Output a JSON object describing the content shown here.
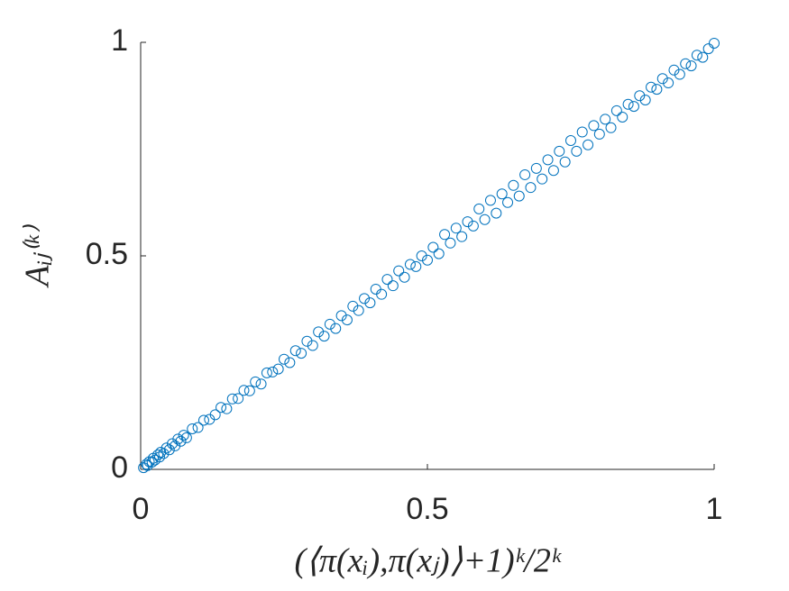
{
  "chart_data": {
    "type": "scatter",
    "x_label": "(⟨π(xᵢ),π(xⱼ)⟩+1)ᵏ/2ᵏ",
    "y_label": "Aᵢⱼ⁽ᵏ⁾",
    "xlim": [
      0,
      1
    ],
    "ylim": [
      0,
      1
    ],
    "xticks": [
      0,
      0.5,
      1
    ],
    "yticks": [
      0,
      0.5,
      1
    ],
    "series": [
      {
        "color": "#0072BD",
        "x": [
          0.005,
          0.01,
          0.012,
          0.015,
          0.02,
          0.022,
          0.025,
          0.03,
          0.033,
          0.035,
          0.04,
          0.045,
          0.05,
          0.055,
          0.06,
          0.065,
          0.07,
          0.075,
          0.08,
          0.09,
          0.1,
          0.11,
          0.12,
          0.13,
          0.14,
          0.15,
          0.16,
          0.17,
          0.18,
          0.19,
          0.2,
          0.21,
          0.22,
          0.23,
          0.24,
          0.25,
          0.26,
          0.27,
          0.28,
          0.29,
          0.3,
          0.31,
          0.32,
          0.33,
          0.34,
          0.35,
          0.36,
          0.37,
          0.38,
          0.39,
          0.4,
          0.41,
          0.42,
          0.43,
          0.44,
          0.45,
          0.46,
          0.47,
          0.48,
          0.49,
          0.5,
          0.51,
          0.52,
          0.53,
          0.54,
          0.55,
          0.56,
          0.57,
          0.58,
          0.59,
          0.6,
          0.61,
          0.62,
          0.63,
          0.64,
          0.65,
          0.66,
          0.67,
          0.68,
          0.69,
          0.7,
          0.71,
          0.72,
          0.73,
          0.74,
          0.75,
          0.76,
          0.77,
          0.78,
          0.79,
          0.8,
          0.81,
          0.82,
          0.83,
          0.84,
          0.85,
          0.86,
          0.87,
          0.88,
          0.89,
          0.9,
          0.91,
          0.92,
          0.93,
          0.94,
          0.95,
          0.96,
          0.97,
          0.98,
          0.99,
          1.0
        ],
        "values": [
          0.004,
          0.012,
          0.009,
          0.018,
          0.017,
          0.026,
          0.022,
          0.034,
          0.029,
          0.04,
          0.037,
          0.05,
          0.046,
          0.06,
          0.055,
          0.071,
          0.066,
          0.08,
          0.074,
          0.095,
          0.098,
          0.115,
          0.117,
          0.128,
          0.145,
          0.142,
          0.165,
          0.166,
          0.185,
          0.184,
          0.205,
          0.2,
          0.226,
          0.228,
          0.235,
          0.258,
          0.25,
          0.278,
          0.272,
          0.3,
          0.29,
          0.322,
          0.312,
          0.34,
          0.33,
          0.36,
          0.35,
          0.382,
          0.372,
          0.4,
          0.39,
          0.422,
          0.41,
          0.445,
          0.43,
          0.465,
          0.45,
          0.48,
          0.475,
          0.5,
          0.49,
          0.52,
          0.505,
          0.55,
          0.53,
          0.565,
          0.545,
          0.58,
          0.57,
          0.61,
          0.585,
          0.63,
          0.6,
          0.645,
          0.625,
          0.665,
          0.64,
          0.69,
          0.66,
          0.705,
          0.68,
          0.725,
          0.7,
          0.745,
          0.72,
          0.77,
          0.745,
          0.79,
          0.76,
          0.805,
          0.785,
          0.82,
          0.8,
          0.84,
          0.825,
          0.855,
          0.85,
          0.875,
          0.865,
          0.895,
          0.89,
          0.915,
          0.905,
          0.935,
          0.925,
          0.95,
          0.945,
          0.97,
          0.965,
          0.985,
          0.998
        ]
      }
    ]
  }
}
